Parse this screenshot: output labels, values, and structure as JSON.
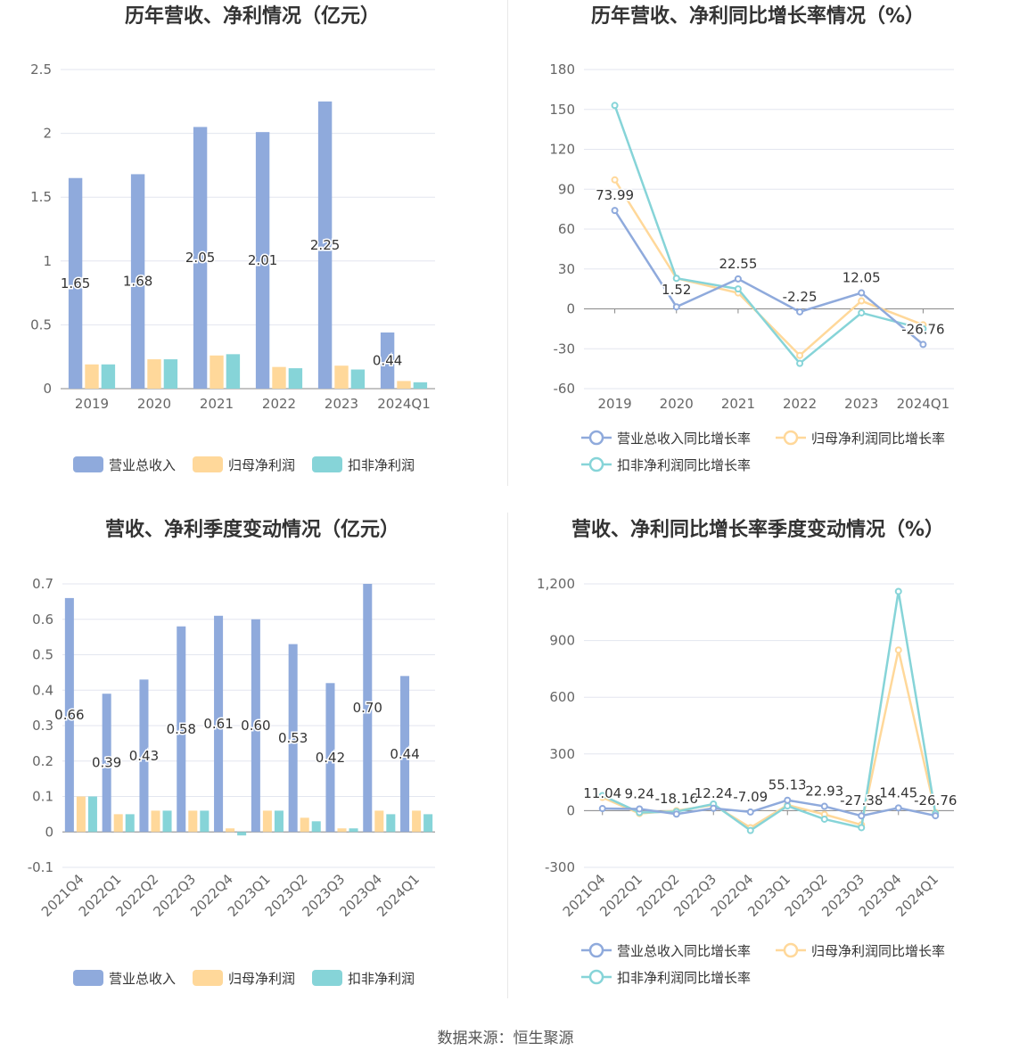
{
  "colors": {
    "revenue": "#8faadc",
    "net_profit": "#ffd89a",
    "deducted_profit": "#86d4d8",
    "grid": "#e3e6ef",
    "axis_text": "#666666",
    "title_text": "#333333"
  },
  "source": "数据来源：恒生聚源",
  "chart_data": [
    {
      "id": "annual-amounts",
      "type": "bar",
      "title": "历年营收、净利情况（亿元）",
      "categories": [
        "2019",
        "2020",
        "2021",
        "2022",
        "2023",
        "2024Q1"
      ],
      "ylim": [
        0,
        2.5
      ],
      "yticks": [
        0,
        0.5,
        1,
        1.5,
        2,
        2.5
      ],
      "ytick_labels": [
        "0",
        "0.5",
        "1",
        "1.5",
        "2",
        "2.5"
      ],
      "series": [
        {
          "name": "营业总收入",
          "color_key": "revenue",
          "values": [
            1.65,
            1.68,
            2.05,
            2.01,
            2.25,
            0.44
          ],
          "labels": [
            "1.65",
            "1.68",
            "2.05",
            "2.01",
            "2.25",
            "0.44"
          ]
        },
        {
          "name": "归母净利润",
          "color_key": "net_profit",
          "values": [
            0.19,
            0.23,
            0.26,
            0.17,
            0.18,
            0.06
          ]
        },
        {
          "name": "扣非净利润",
          "color_key": "deducted_profit",
          "values": [
            0.19,
            0.23,
            0.27,
            0.16,
            0.15,
            0.05
          ]
        }
      ],
      "grid": true,
      "legend": "bottom"
    },
    {
      "id": "annual-growth",
      "type": "line",
      "title": "历年营收、净利同比增长率情况（%）",
      "categories": [
        "2019",
        "2020",
        "2021",
        "2022",
        "2023",
        "2024Q1"
      ],
      "ylim": [
        -60,
        180
      ],
      "yticks": [
        -60,
        -30,
        0,
        30,
        60,
        90,
        120,
        150,
        180
      ],
      "ytick_labels": [
        "-60",
        "-30",
        "0",
        "30",
        "60",
        "90",
        "120",
        "150",
        "180"
      ],
      "series": [
        {
          "name": "营业总收入同比增长率",
          "color_key": "revenue",
          "values": [
            73.99,
            1.52,
            22.55,
            -2.25,
            12.05,
            -26.76
          ],
          "labels": [
            "73.99",
            "1.52",
            "22.55",
            "-2.25",
            "12.05",
            "-26.76"
          ]
        },
        {
          "name": "归母净利润同比增长率",
          "color_key": "net_profit",
          "values": [
            97,
            23,
            12,
            -35,
            6,
            -12
          ]
        },
        {
          "name": "扣非净利润同比增长率",
          "color_key": "deducted_profit",
          "values": [
            153,
            23,
            15,
            -41,
            -3,
            -15
          ]
        }
      ],
      "grid": true,
      "legend": "bottom"
    },
    {
      "id": "quarterly-amounts",
      "type": "bar",
      "title": "营收、净利季度变动情况（亿元）",
      "categories": [
        "2021Q4",
        "2022Q1",
        "2022Q2",
        "2022Q3",
        "2022Q4",
        "2023Q1",
        "2023Q2",
        "2023Q3",
        "2023Q4",
        "2024Q1"
      ],
      "ylim": [
        -0.1,
        0.7
      ],
      "yticks": [
        -0.1,
        0,
        0.1,
        0.2,
        0.3,
        0.4,
        0.5,
        0.6,
        0.7
      ],
      "ytick_labels": [
        "-0.1",
        "0",
        "0.1",
        "0.2",
        "0.3",
        "0.4",
        "0.5",
        "0.6",
        "0.7"
      ],
      "series": [
        {
          "name": "营业总收入",
          "color_key": "revenue",
          "values": [
            0.66,
            0.39,
            0.43,
            0.58,
            0.61,
            0.6,
            0.53,
            0.42,
            0.7,
            0.44
          ],
          "labels": [
            "0.66",
            "0.39",
            "0.43",
            "0.58",
            "0.61",
            "0.60",
            "0.53",
            "0.42",
            "0.70",
            "0.44"
          ]
        },
        {
          "name": "归母净利润",
          "color_key": "net_profit",
          "values": [
            0.1,
            0.05,
            0.06,
            0.06,
            0.01,
            0.06,
            0.04,
            0.01,
            0.06,
            0.06
          ]
        },
        {
          "name": "扣非净利润",
          "color_key": "deducted_profit",
          "values": [
            0.1,
            0.05,
            0.06,
            0.06,
            -0.01,
            0.06,
            0.03,
            0.01,
            0.05,
            0.05
          ]
        }
      ],
      "grid": true,
      "legend": "bottom"
    },
    {
      "id": "quarterly-growth",
      "type": "line",
      "title": "营收、净利同比增长率季度变动情况（%）",
      "categories": [
        "2021Q4",
        "2022Q1",
        "2022Q2",
        "2022Q3",
        "2022Q4",
        "2023Q1",
        "2023Q2",
        "2023Q3",
        "2023Q4",
        "2024Q1"
      ],
      "ylim": [
        -300,
        1200
      ],
      "yticks": [
        -300,
        0,
        300,
        600,
        900,
        1200
      ],
      "ytick_labels": [
        "-300",
        "0",
        "300",
        "600",
        "900",
        "1,200"
      ],
      "series": [
        {
          "name": "营业总收入同比增长率",
          "color_key": "revenue",
          "values": [
            11.04,
            9.24,
            -18.16,
            12.24,
            -7.09,
            55.13,
            22.93,
            -27.38,
            14.45,
            -26.76
          ],
          "labels": [
            "11.04",
            "9.24",
            "-18.16",
            "12.24",
            "-7.09",
            "55.13",
            "22.93",
            "-27.38",
            "14.45",
            "-26.76"
          ]
        },
        {
          "name": "归母净利润同比增长率",
          "color_key": "net_profit",
          "values": [
            70,
            -15,
            0,
            30,
            -90,
            30,
            -20,
            -75,
            850,
            -10
          ]
        },
        {
          "name": "扣非净利润同比增长率",
          "color_key": "deducted_profit",
          "values": [
            80,
            -10,
            -5,
            35,
            -105,
            25,
            -45,
            -90,
            1160,
            -15
          ]
        }
      ],
      "grid": true,
      "legend": "bottom"
    }
  ]
}
